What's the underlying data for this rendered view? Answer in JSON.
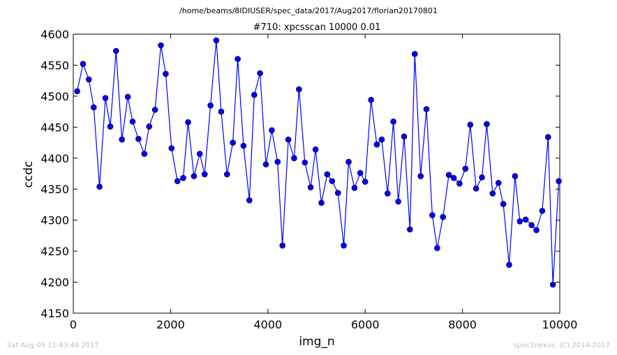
{
  "page": {
    "path_title": "/home/beams/8IDIUSER/spec_data/2017/Aug2017/florian20170801",
    "timestamp": "Sat Aug 05 11:43:49 2017",
    "credit": "spec2nexus, (C) 2014-2017"
  },
  "chart_data": {
    "type": "line",
    "title": "#710: xpcsscan 10000 0.01",
    "xlabel": "img_n",
    "ylabel": "ccdc",
    "xlim": [
      0,
      10000
    ],
    "ylim": [
      4150,
      4600
    ],
    "xticks": [
      0,
      2000,
      4000,
      6000,
      8000,
      10000
    ],
    "yticks": [
      4150,
      4200,
      4250,
      4300,
      4350,
      4400,
      4450,
      4500,
      4550,
      4600
    ],
    "grid": false,
    "color": "#0000ff",
    "marker": "circle",
    "x": [
      80,
      200,
      320,
      420,
      540,
      660,
      760,
      880,
      1000,
      1120,
      1220,
      1340,
      1460,
      1560,
      1680,
      1800,
      1900,
      2020,
      2140,
      2260,
      2360,
      2480,
      2600,
      2700,
      2820,
      2940,
      3040,
      3160,
      3280,
      3380,
      3500,
      3620,
      3720,
      3840,
      3960,
      4080,
      4200,
      4300,
      4420,
      4540,
      4640,
      4760,
      4880,
      4980,
      5100,
      5220,
      5320,
      5440,
      5560,
      5660,
      5780,
      5900,
      6000,
      6120,
      6240,
      6340,
      6460,
      6580,
      6680,
      6800,
      6920,
      7020,
      7140,
      7260,
      7380,
      7480,
      7600,
      7720,
      7820,
      7940,
      8060,
      8160,
      8280,
      8400,
      8500,
      8620,
      8740,
      8840,
      8960,
      9080,
      9180,
      9300,
      9420,
      9520,
      9640,
      9760,
      9860,
      9980
    ],
    "y": [
      4508,
      4552,
      4527,
      4482,
      4354,
      4497,
      4451,
      4573,
      4430,
      4499,
      4459,
      4431,
      4407,
      4451,
      4478,
      4582,
      4536,
      4416,
      4363,
      4368,
      4458,
      4371,
      4407,
      4374,
      4485,
      4590,
      4475,
      4374,
      4425,
      4560,
      4420,
      4332,
      4502,
      4537,
      4390,
      4445,
      4394,
      4259,
      4430,
      4400,
      4511,
      4393,
      4353,
      4414,
      4328,
      4374,
      4363,
      4344,
      4259,
      4394,
      4352,
      4376,
      4362,
      4494,
      4422,
      4430,
      4343,
      4459,
      4330,
      4435,
      4285,
      4568,
      4371,
      4479,
      4308,
      4255,
      4305,
      4373,
      4368,
      4359,
      4383,
      4454,
      4351,
      4369,
      4455,
      4343,
      4360,
      4326,
      4228,
      4371,
      4298,
      4301,
      4292,
      4284,
      4315,
      4434,
      4196,
      4363
    ]
  }
}
